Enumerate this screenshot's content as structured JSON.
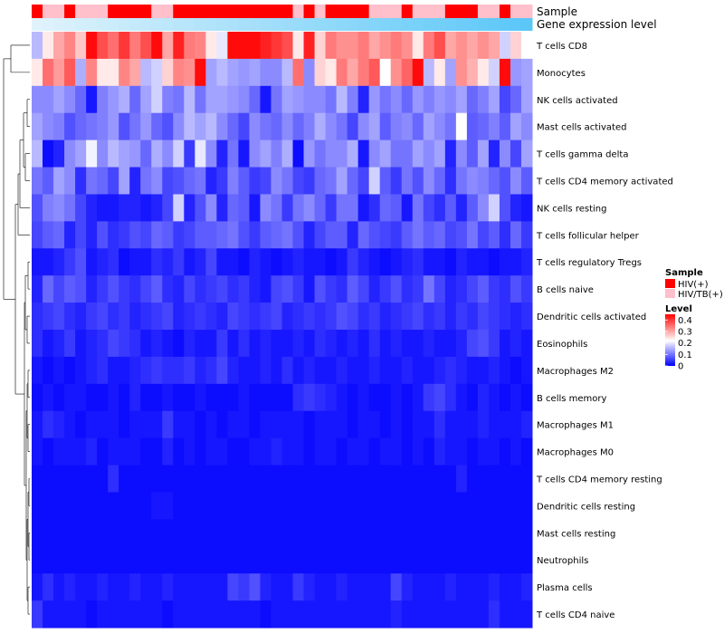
{
  "chart_data": {
    "type": "heatmap",
    "title": "",
    "annotation_labels": {
      "sample": "Sample",
      "expression": "Gene expression level"
    },
    "legend": {
      "sample_title": "Sample",
      "sample_entries": [
        {
          "label": "HIV(+)",
          "color": "#ff0000"
        },
        {
          "label": "HIV/TB(+)",
          "color": "#ffc0cb"
        }
      ],
      "level_title": "Level",
      "level_ticks": [
        "0.4",
        "0.3",
        "0.2",
        "0.1",
        "0"
      ],
      "level_tick_values": [
        0.4,
        0.3,
        0.2,
        0.1,
        0
      ],
      "range": [
        0,
        0.45
      ],
      "color_low": "#0000ff",
      "color_mid": "#ffffff",
      "color_high": "#ff0000",
      "mid_value": 0.22
    },
    "sample_groups": [
      "HIV(+)",
      "HIV/TB(+)",
      "HIV/TB(+)",
      "HIV(+)",
      "HIV/TB(+)",
      "HIV/TB(+)",
      "HIV/TB(+)",
      "HIV(+)",
      "HIV(+)",
      "HIV(+)",
      "HIV(+)",
      "HIV/TB(+)",
      "HIV/TB(+)",
      "HIV(+)",
      "HIV(+)",
      "HIV(+)",
      "HIV(+)",
      "HIV(+)",
      "HIV(+)",
      "HIV(+)",
      "HIV(+)",
      "HIV(+)",
      "HIV(+)",
      "HIV(+)",
      "HIV/TB(+)",
      "HIV(+)",
      "HIV/TB(+)",
      "HIV(+)",
      "HIV(+)",
      "HIV(+)",
      "HIV(+)",
      "HIV/TB(+)",
      "HIV/TB(+)",
      "HIV/TB(+)",
      "HIV(+)",
      "HIV/TB(+)",
      "HIV/TB(+)",
      "HIV/TB(+)",
      "HIV(+)",
      "HIV(+)",
      "HIV(+)",
      "HIV/TB(+)",
      "HIV/TB(+)",
      "HIV(+)",
      "HIV/TB(+)",
      "HIV/TB(+)"
    ],
    "expression_levels": [
      0.02,
      0.04,
      0.06,
      0.08,
      0.1,
      0.12,
      0.14,
      0.16,
      0.18,
      0.2,
      0.22,
      0.24,
      0.26,
      0.28,
      0.3,
      0.32,
      0.34,
      0.36,
      0.38,
      0.4,
      0.42,
      0.44,
      0.46,
      0.48,
      0.5,
      0.52,
      0.54,
      0.56,
      0.58,
      0.6,
      0.62,
      0.64,
      0.66,
      0.68,
      0.7,
      0.72,
      0.74,
      0.76,
      0.78,
      0.8,
      0.82,
      0.84,
      0.86,
      0.88,
      0.9,
      0.92
    ],
    "rows": [
      "T cells CD8",
      "Monocytes",
      "NK cells activated",
      "Mast cells activated",
      "T cells gamma delta",
      "T cells CD4 memory activated",
      "NK cells resting",
      "T cells follicular helper",
      "T cells regulatory  Tregs",
      "B cells naive",
      "Dendritic cells activated",
      "Eosinophils",
      "Macrophages M2",
      "B cells memory",
      "Macrophages M1",
      "Macrophages M0",
      "T cells CD4 memory resting",
      "Dendritic cells resting",
      "Mast cells resting",
      "Neutrophils",
      "Plasma cells",
      "T cells CD4 naive"
    ],
    "values": [
      [
        0.16,
        0.24,
        0.3,
        0.33,
        0.27,
        0.44,
        0.38,
        0.35,
        0.4,
        0.34,
        0.38,
        0.44,
        0.3,
        0.42,
        0.34,
        0.33,
        0.24,
        0.2,
        0.44,
        0.44,
        0.44,
        0.42,
        0.4,
        0.38,
        0.24,
        0.42,
        0.26,
        0.34,
        0.32,
        0.32,
        0.34,
        0.3,
        0.32,
        0.34,
        0.32,
        0.24,
        0.34,
        0.38,
        0.3,
        0.32,
        0.3,
        0.32,
        0.3,
        0.18,
        0.26,
        0.22
      ],
      [
        0.24,
        0.35,
        0.31,
        0.37,
        0.15,
        0.33,
        0.24,
        0.24,
        0.33,
        0.3,
        0.16,
        0.18,
        0.26,
        0.33,
        0.32,
        0.44,
        0.14,
        0.16,
        0.14,
        0.13,
        0.14,
        0.12,
        0.12,
        0.16,
        0.35,
        0.12,
        0.26,
        0.24,
        0.34,
        0.3,
        0.34,
        0.37,
        0.22,
        0.32,
        0.36,
        0.44,
        0.16,
        0.24,
        0.14,
        0.32,
        0.29,
        0.24,
        0.18,
        0.44,
        0.13,
        0.14
      ],
      [
        0.12,
        0.12,
        0.14,
        0.12,
        0.09,
        0.02,
        0.11,
        0.13,
        0.15,
        0.09,
        0.14,
        0.18,
        0.11,
        0.1,
        0.16,
        0.1,
        0.14,
        0.14,
        0.13,
        0.12,
        0.09,
        0.02,
        0.1,
        0.14,
        0.13,
        0.12,
        0.12,
        0.1,
        0.16,
        0.11,
        0.03,
        0.13,
        0.1,
        0.12,
        0.09,
        0.13,
        0.11,
        0.13,
        0.12,
        0.14,
        0.09,
        0.11,
        0.14,
        0.06,
        0.09,
        0.14
      ],
      [
        0.14,
        0.12,
        0.11,
        0.07,
        0.09,
        0.1,
        0.11,
        0.13,
        0.07,
        0.1,
        0.13,
        0.09,
        0.07,
        0.12,
        0.16,
        0.14,
        0.16,
        0.12,
        0.09,
        0.06,
        0.12,
        0.1,
        0.09,
        0.12,
        0.09,
        0.11,
        0.15,
        0.12,
        0.1,
        0.06,
        0.12,
        0.14,
        0.08,
        0.11,
        0.12,
        0.09,
        0.14,
        0.12,
        0.1,
        0.22,
        0.08,
        0.09,
        0.11,
        0.08,
        0.14,
        0.12
      ],
      [
        0.16,
        0.01,
        0.03,
        0.12,
        0.14,
        0.21,
        0.12,
        0.16,
        0.14,
        0.13,
        0.09,
        0.15,
        0.12,
        0.18,
        0.05,
        0.2,
        0.12,
        0.03,
        0.1,
        0.02,
        0.12,
        0.14,
        0.11,
        0.15,
        0.01,
        0.13,
        0.1,
        0.12,
        0.12,
        0.15,
        0.02,
        0.12,
        0.14,
        0.1,
        0.1,
        0.14,
        0.12,
        0.14,
        0.03,
        0.12,
        0.08,
        0.14,
        0.03,
        0.12,
        0.06,
        0.14
      ],
      [
        0.1,
        0.08,
        0.14,
        0.12,
        0.04,
        0.1,
        0.09,
        0.06,
        0.14,
        0.03,
        0.1,
        0.12,
        0.06,
        0.07,
        0.09,
        0.1,
        0.03,
        0.05,
        0.11,
        0.08,
        0.05,
        0.06,
        0.12,
        0.1,
        0.06,
        0.05,
        0.09,
        0.1,
        0.14,
        0.09,
        0.06,
        0.18,
        0.08,
        0.05,
        0.1,
        0.07,
        0.12,
        0.09,
        0.04,
        0.1,
        0.12,
        0.11,
        0.09,
        0.07,
        0.12,
        0.08
      ],
      [
        0.07,
        0.11,
        0.12,
        0.1,
        0.06,
        0.03,
        0.02,
        0.02,
        0.03,
        0.03,
        0.02,
        0.03,
        0.06,
        0.18,
        0.03,
        0.07,
        0.12,
        0.03,
        0.09,
        0.08,
        0.02,
        0.12,
        0.1,
        0.05,
        0.1,
        0.12,
        0.09,
        0.05,
        0.1,
        0.1,
        0.02,
        0.04,
        0.09,
        0.08,
        0.02,
        0.1,
        0.06,
        0.04,
        0.08,
        0.03,
        0.08,
        0.12,
        0.18,
        0.07,
        0.03,
        0.02
      ],
      [
        0.06,
        0.08,
        0.09,
        0.03,
        0.06,
        0.03,
        0.07,
        0.04,
        0.05,
        0.07,
        0.06,
        0.09,
        0.08,
        0.05,
        0.06,
        0.08,
        0.08,
        0.09,
        0.1,
        0.07,
        0.05,
        0.08,
        0.09,
        0.1,
        0.07,
        0.03,
        0.06,
        0.08,
        0.08,
        0.03,
        0.09,
        0.07,
        0.06,
        0.05,
        0.08,
        0.1,
        0.08,
        0.09,
        0.06,
        0.07,
        0.1,
        0.06,
        0.08,
        0.04,
        0.09,
        0.05
      ],
      [
        0.02,
        0.02,
        0.03,
        0.05,
        0.07,
        0.02,
        0.03,
        0.04,
        0.01,
        0.02,
        0.02,
        0.04,
        0.03,
        0.05,
        0.02,
        0.03,
        0.06,
        0.02,
        0.02,
        0.01,
        0.03,
        0.02,
        0.01,
        0.02,
        0.03,
        0.02,
        0.02,
        0.01,
        0.02,
        0.05,
        0.03,
        0.02,
        0.01,
        0.02,
        0.03,
        0.04,
        0.02,
        0.02,
        0.01,
        0.03,
        0.02,
        0.02,
        0.01,
        0.02,
        0.02,
        0.03
      ],
      [
        0.03,
        0.09,
        0.06,
        0.08,
        0.07,
        0.03,
        0.05,
        0.07,
        0.05,
        0.04,
        0.06,
        0.08,
        0.04,
        0.03,
        0.06,
        0.04,
        0.05,
        0.06,
        0.04,
        0.05,
        0.03,
        0.02,
        0.06,
        0.07,
        0.05,
        0.02,
        0.07,
        0.05,
        0.04,
        0.08,
        0.06,
        0.03,
        0.05,
        0.07,
        0.04,
        0.05,
        0.1,
        0.06,
        0.03,
        0.04,
        0.06,
        0.08,
        0.05,
        0.04,
        0.07,
        0.05
      ],
      [
        0.04,
        0.05,
        0.06,
        0.04,
        0.03,
        0.05,
        0.06,
        0.04,
        0.05,
        0.03,
        0.04,
        0.05,
        0.06,
        0.03,
        0.04,
        0.05,
        0.04,
        0.03,
        0.06,
        0.05,
        0.04,
        0.05,
        0.06,
        0.03,
        0.04,
        0.05,
        0.04,
        0.05,
        0.07,
        0.06,
        0.04,
        0.05,
        0.03,
        0.04,
        0.05,
        0.06,
        0.04,
        0.05,
        0.03,
        0.05,
        0.04,
        0.06,
        0.05,
        0.04,
        0.03,
        0.04
      ],
      [
        0.04,
        0.02,
        0.03,
        0.05,
        0.02,
        0.03,
        0.04,
        0.06,
        0.05,
        0.04,
        0.02,
        0.03,
        0.02,
        0.01,
        0.03,
        0.02,
        0.02,
        0.05,
        0.02,
        0.04,
        0.02,
        0.03,
        0.02,
        0.02,
        0.03,
        0.02,
        0.04,
        0.03,
        0.02,
        0.03,
        0.02,
        0.04,
        0.02,
        0.03,
        0.02,
        0.02,
        0.03,
        0.02,
        0.02,
        0.03,
        0.06,
        0.07,
        0.05,
        0.02,
        0.03,
        0.02
      ],
      [
        0.02,
        0.01,
        0.02,
        0.01,
        0.02,
        0.03,
        0.04,
        0.02,
        0.02,
        0.03,
        0.04,
        0.05,
        0.04,
        0.04,
        0.05,
        0.03,
        0.04,
        0.06,
        0.03,
        0.02,
        0.02,
        0.03,
        0.02,
        0.04,
        0.02,
        0.03,
        0.02,
        0.02,
        0.03,
        0.02,
        0.02,
        0.03,
        0.02,
        0.02,
        0.03,
        0.02,
        0.02,
        0.03,
        0.04,
        0.03,
        0.02,
        0.02,
        0.03,
        0.02,
        0.01,
        0.02
      ],
      [
        0.01,
        0.02,
        0.01,
        0.02,
        0.02,
        0.01,
        0.01,
        0.02,
        0.01,
        0.03,
        0.01,
        0.01,
        0.02,
        0.01,
        0.01,
        0.02,
        0.01,
        0.01,
        0.01,
        0.02,
        0.01,
        0.01,
        0.01,
        0.01,
        0.04,
        0.05,
        0.04,
        0.03,
        0.02,
        0.01,
        0.02,
        0.01,
        0.01,
        0.02,
        0.01,
        0.02,
        0.05,
        0.06,
        0.04,
        0.02,
        0.01,
        0.03,
        0.02,
        0.01,
        0.02,
        0.01
      ],
      [
        0.02,
        0.04,
        0.03,
        0.02,
        0.01,
        0.02,
        0.02,
        0.02,
        0.01,
        0.02,
        0.02,
        0.02,
        0.05,
        0.02,
        0.02,
        0.01,
        0.02,
        0.01,
        0.02,
        0.02,
        0.01,
        0.02,
        0.02,
        0.02,
        0.02,
        0.01,
        0.02,
        0.02,
        0.02,
        0.01,
        0.02,
        0.02,
        0.01,
        0.02,
        0.01,
        0.02,
        0.02,
        0.04,
        0.02,
        0.02,
        0.02,
        0.03,
        0.02,
        0.02,
        0.02,
        0.03
      ],
      [
        0.02,
        0.01,
        0.02,
        0.02,
        0.02,
        0.03,
        0.01,
        0.02,
        0.02,
        0.02,
        0.01,
        0.01,
        0.03,
        0.01,
        0.02,
        0.01,
        0.02,
        0.02,
        0.01,
        0.01,
        0.02,
        0.02,
        0.03,
        0.02,
        0.02,
        0.01,
        0.02,
        0.02,
        0.01,
        0.02,
        0.02,
        0.01,
        0.02,
        0.02,
        0.01,
        0.02,
        0.01,
        0.03,
        0.02,
        0.02,
        0.01,
        0.02,
        0.02,
        0.01,
        0.02,
        0.01
      ],
      [
        0.01,
        0.01,
        0.01,
        0.01,
        0.01,
        0.01,
        0.01,
        0.04,
        0.01,
        0.01,
        0.01,
        0.01,
        0.01,
        0.01,
        0.01,
        0.01,
        0.01,
        0.01,
        0.01,
        0.01,
        0.01,
        0.01,
        0.01,
        0.01,
        0.01,
        0.01,
        0.01,
        0.01,
        0.01,
        0.01,
        0.01,
        0.01,
        0.01,
        0.01,
        0.01,
        0.01,
        0.01,
        0.01,
        0.01,
        0.03,
        0.01,
        0.01,
        0.01,
        0.01,
        0.01,
        0.01
      ],
      [
        0.01,
        0.01,
        0.01,
        0.01,
        0.01,
        0.01,
        0.01,
        0.01,
        0.01,
        0.01,
        0.01,
        0.02,
        0.02,
        0.01,
        0.01,
        0.01,
        0.01,
        0.01,
        0.01,
        0.01,
        0.01,
        0.01,
        0.01,
        0.01,
        0.01,
        0.01,
        0.01,
        0.01,
        0.01,
        0.01,
        0.01,
        0.01,
        0.01,
        0.01,
        0.01,
        0.01,
        0.01,
        0.01,
        0.01,
        0.01,
        0.01,
        0.01,
        0.01,
        0.01,
        0.01,
        0.01
      ],
      [
        0.01,
        0.01,
        0.01,
        0.01,
        0.01,
        0.01,
        0.01,
        0.01,
        0.01,
        0.01,
        0.01,
        0.01,
        0.01,
        0.01,
        0.01,
        0.01,
        0.01,
        0.01,
        0.01,
        0.01,
        0.01,
        0.01,
        0.01,
        0.01,
        0.01,
        0.01,
        0.01,
        0.01,
        0.01,
        0.01,
        0.01,
        0.01,
        0.01,
        0.01,
        0.01,
        0.01,
        0.01,
        0.01,
        0.01,
        0.01,
        0.01,
        0.01,
        0.01,
        0.01,
        0.01,
        0.01
      ],
      [
        0.01,
        0.01,
        0.01,
        0.01,
        0.01,
        0.01,
        0.01,
        0.01,
        0.01,
        0.01,
        0.01,
        0.01,
        0.01,
        0.01,
        0.01,
        0.01,
        0.01,
        0.01,
        0.01,
        0.01,
        0.01,
        0.01,
        0.01,
        0.01,
        0.01,
        0.01,
        0.01,
        0.01,
        0.01,
        0.01,
        0.01,
        0.01,
        0.01,
        0.01,
        0.01,
        0.01,
        0.01,
        0.01,
        0.01,
        0.01,
        0.01,
        0.01,
        0.01,
        0.01,
        0.01,
        0.01
      ],
      [
        0.02,
        0.04,
        0.02,
        0.03,
        0.02,
        0.02,
        0.03,
        0.02,
        0.02,
        0.03,
        0.02,
        0.02,
        0.03,
        0.02,
        0.02,
        0.02,
        0.02,
        0.02,
        0.06,
        0.05,
        0.07,
        0.03,
        0.02,
        0.02,
        0.05,
        0.03,
        0.02,
        0.02,
        0.03,
        0.02,
        0.02,
        0.02,
        0.02,
        0.06,
        0.03,
        0.02,
        0.02,
        0.02,
        0.03,
        0.02,
        0.02,
        0.02,
        0.03,
        0.02,
        0.02,
        0.03
      ],
      [
        0.05,
        0.02,
        0.02,
        0.02,
        0.02,
        0.01,
        0.02,
        0.02,
        0.02,
        0.02,
        0.02,
        0.02,
        0.01,
        0.02,
        0.02,
        0.02,
        0.02,
        0.02,
        0.02,
        0.02,
        0.02,
        0.01,
        0.02,
        0.02,
        0.02,
        0.02,
        0.02,
        0.02,
        0.02,
        0.02,
        0.02,
        0.02,
        0.02,
        0.03,
        0.02,
        0.02,
        0.02,
        0.02,
        0.02,
        0.02,
        0.02,
        0.02,
        0.04,
        0.02,
        0.02,
        0.02
      ]
    ]
  }
}
